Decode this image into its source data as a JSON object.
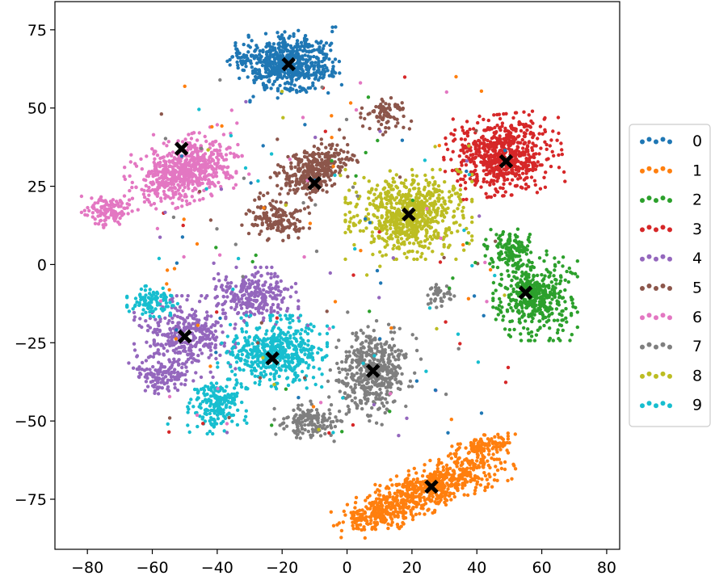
{
  "chart_data": {
    "type": "scatter",
    "title": "",
    "xlabel": "",
    "ylabel": "",
    "xlim": [
      -90,
      84
    ],
    "ylim": [
      -91,
      84
    ],
    "x_ticks": [
      -80,
      -60,
      -40,
      -20,
      0,
      20,
      40,
      60,
      80
    ],
    "y_ticks": [
      -75,
      -50,
      -25,
      0,
      25,
      50,
      75
    ],
    "x_tick_labels": [
      "−80",
      "−60",
      "−40",
      "−20",
      "0",
      "20",
      "40",
      "60",
      "80"
    ],
    "y_tick_labels": [
      "−75",
      "−50",
      "−25",
      "0",
      "25",
      "50",
      "75"
    ],
    "grid": false,
    "legend_position": "right-center",
    "series": [
      {
        "name": "0",
        "color": "#1f77b4",
        "centroid": [
          -18,
          64
        ]
      },
      {
        "name": "1",
        "color": "#ff7f0e",
        "centroid": [
          26,
          -71
        ]
      },
      {
        "name": "2",
        "color": "#2ca02c",
        "centroid": [
          55,
          -9
        ]
      },
      {
        "name": "3",
        "color": "#d62728",
        "centroid": [
          49,
          33
        ]
      },
      {
        "name": "4",
        "color": "#9467bd",
        "centroid": [
          -50,
          -23
        ]
      },
      {
        "name": "5",
        "color": "#8c564b",
        "centroid": [
          -10,
          26
        ]
      },
      {
        "name": "6",
        "color": "#e377c2",
        "centroid": [
          -51,
          37
        ]
      },
      {
        "name": "7",
        "color": "#7f7f7f",
        "centroid": [
          8,
          -34
        ]
      },
      {
        "name": "8",
        "color": "#bcbd22",
        "centroid": [
          19,
          16
        ]
      },
      {
        "name": "9",
        "color": "#17becf",
        "centroid": [
          -23,
          -30
        ]
      }
    ],
    "centroid_marker": {
      "shape": "X",
      "color": "#000000"
    }
  }
}
